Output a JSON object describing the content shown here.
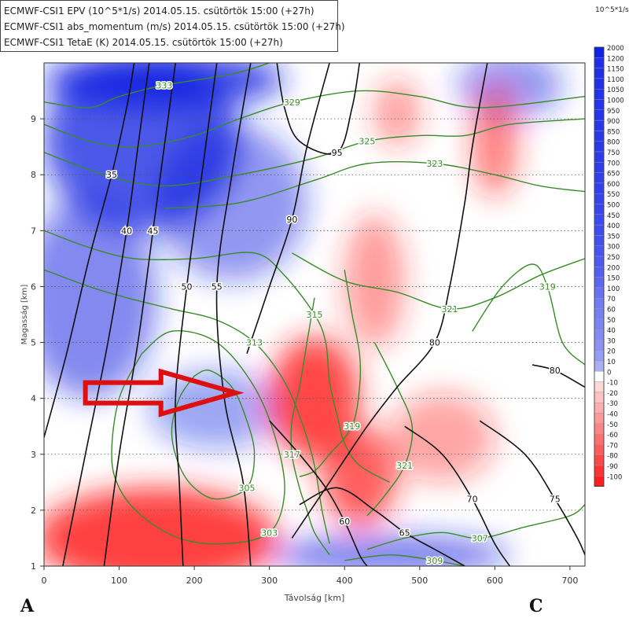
{
  "header": {
    "lines": [
      "ECMWF-CSI1 EPV (10^5*1/s) 2014.05.15. csütörtök 15:00 (+27h)",
      "ECMWF-CSI1 abs_momentum (m/s) 2014.05.15. csütörtök 15:00 (+27h)",
      "ECMWF-CSI1 TetaE (K) 2014.05.15. csütörtök 15:00 (+27h)"
    ]
  },
  "colorbar": {
    "unit": "10^5*1/s",
    "labels": [
      "2000",
      "1200",
      "1150",
      "1100",
      "1050",
      "1000",
      "950",
      "900",
      "850",
      "800",
      "750",
      "700",
      "650",
      "600",
      "550",
      "500",
      "450",
      "400",
      "350",
      "300",
      "250",
      "200",
      "150",
      "100",
      "70",
      "60",
      "50",
      "40",
      "30",
      "20",
      "10",
      "0",
      "-10",
      "-20",
      "-30",
      "-40",
      "-50",
      "-60",
      "-70",
      "-80",
      "-90",
      "-100"
    ]
  },
  "corners": {
    "left": "A",
    "right": "C"
  },
  "chart_data": {
    "type": "cross-section contour",
    "xlabel": "Távolság [km]",
    "ylabel": "Magasság [km]",
    "xlim": [
      0,
      720
    ],
    "ylim": [
      1,
      10
    ],
    "xticks": [
      0,
      100,
      200,
      300,
      400,
      500,
      600,
      700
    ],
    "yticks": [
      1,
      2,
      3,
      4,
      5,
      6,
      7,
      8,
      9
    ],
    "grid": "horizontal dotted",
    "epv_fill": {
      "positive_color": "#1020e0",
      "negative_color": "#ff2020",
      "positive_regions": [
        {
          "x": 130,
          "y": 8.6,
          "rx": 130,
          "ry": 1.6,
          "v": 450
        },
        {
          "x": 60,
          "y": 5.8,
          "rx": 90,
          "ry": 1.8,
          "v": 250
        },
        {
          "x": 250,
          "y": 7.5,
          "rx": 100,
          "ry": 1.4,
          "v": 200
        },
        {
          "x": 160,
          "y": 9.7,
          "rx": 160,
          "ry": 0.5,
          "v": 600
        },
        {
          "x": 620,
          "y": 9.6,
          "rx": 70,
          "ry": 0.6,
          "v": 200
        },
        {
          "x": 460,
          "y": 1.2,
          "rx": 160,
          "ry": 0.35,
          "v": 300
        },
        {
          "x": 230,
          "y": 3.8,
          "rx": 90,
          "ry": 0.7,
          "v": 120
        }
      ],
      "negative_regions": [
        {
          "x": 150,
          "y": 1.5,
          "rx": 160,
          "ry": 0.9,
          "v": -60
        },
        {
          "x": 360,
          "y": 4.0,
          "rx": 60,
          "ry": 1.1,
          "v": -50
        },
        {
          "x": 420,
          "y": 2.6,
          "rx": 50,
          "ry": 0.9,
          "v": -40
        },
        {
          "x": 440,
          "y": 6.1,
          "rx": 40,
          "ry": 1.2,
          "v": -20
        },
        {
          "x": 600,
          "y": 8.6,
          "rx": 30,
          "ry": 1.0,
          "v": -30
        },
        {
          "x": 470,
          "y": 9.1,
          "rx": 30,
          "ry": 0.6,
          "v": -20
        },
        {
          "x": 530,
          "y": 3.3,
          "rx": 70,
          "ry": 0.8,
          "v": -15
        }
      ]
    },
    "abs_momentum_contours": [
      {
        "label": "35",
        "pts": [
          [
            0,
            3.3
          ],
          [
            30,
            4.8
          ],
          [
            60,
            6.5
          ],
          [
            90,
            8.0
          ],
          [
            110,
            9.2
          ],
          [
            120,
            10
          ]
        ]
      },
      {
        "label": "40",
        "pts": [
          [
            25,
            1
          ],
          [
            55,
            3.0
          ],
          [
            85,
            5.0
          ],
          [
            110,
            7.0
          ],
          [
            125,
            8.5
          ],
          [
            140,
            10
          ]
        ]
      },
      {
        "label": "45",
        "pts": [
          [
            80,
            1
          ],
          [
            100,
            3.0
          ],
          [
            125,
            5.0
          ],
          [
            145,
            7.0
          ],
          [
            165,
            9.0
          ],
          [
            175,
            10
          ]
        ]
      },
      {
        "label": "50",
        "pts": [
          [
            185,
            1
          ],
          [
            180,
            2.5
          ],
          [
            175,
            4.0
          ],
          [
            190,
            6.0
          ],
          [
            210,
            8.0
          ],
          [
            230,
            10
          ]
        ]
      },
      {
        "label": "55",
        "pts": [
          [
            275,
            1
          ],
          [
            265,
            2.5
          ],
          [
            240,
            4.0
          ],
          [
            230,
            6.0
          ],
          [
            250,
            8.0
          ],
          [
            275,
            10
          ]
        ]
      },
      {
        "label": "80",
        "pts": [
          [
            330,
            1.5
          ],
          [
            380,
            2.5
          ],
          [
            430,
            3.5
          ],
          [
            470,
            4.2
          ],
          [
            520,
            5.0
          ],
          [
            540,
            6.0
          ],
          [
            560,
            7.5
          ],
          [
            570,
            8.5
          ],
          [
            590,
            10
          ]
        ]
      },
      {
        "label": "90",
        "pts": [
          [
            270,
            4.8
          ],
          [
            300,
            6.0
          ],
          [
            330,
            7.2
          ],
          [
            350,
            8.5
          ],
          [
            380,
            10
          ]
        ]
      },
      {
        "label": "95",
        "pts": [
          [
            310,
            10
          ],
          [
            320,
            9.2
          ],
          [
            340,
            8.6
          ],
          [
            390,
            8.4
          ],
          [
            410,
            9.2
          ],
          [
            420,
            10
          ]
        ]
      },
      {
        "label": "60",
        "pts": [
          [
            300,
            3.6
          ],
          [
            340,
            3.0
          ],
          [
            375,
            2.4
          ],
          [
            400,
            1.8
          ],
          [
            420,
            1.2
          ],
          [
            430,
            1
          ]
        ]
      },
      {
        "label": "65",
        "pts": [
          [
            340,
            2.1
          ],
          [
            390,
            2.4
          ],
          [
            440,
            2.0
          ],
          [
            480,
            1.6
          ],
          [
            520,
            1.3
          ],
          [
            560,
            1
          ]
        ]
      },
      {
        "label": "70",
        "pts": [
          [
            480,
            3.5
          ],
          [
            530,
            3.0
          ],
          [
            570,
            2.2
          ],
          [
            600,
            1.4
          ],
          [
            620,
            1
          ]
        ]
      },
      {
        "label": "75",
        "pts": [
          [
            580,
            3.6
          ],
          [
            640,
            3.0
          ],
          [
            680,
            2.2
          ],
          [
            710,
            1.5
          ],
          [
            720,
            1.2
          ]
        ]
      },
      {
        "label": "80",
        "pts": [
          [
            650,
            4.6
          ],
          [
            680,
            4.5
          ],
          [
            720,
            4.2
          ]
        ]
      }
    ],
    "theta_e_contours": [
      {
        "label": "333",
        "pts": [
          [
            0,
            9.3
          ],
          [
            60,
            9.2
          ],
          [
            100,
            9.4
          ],
          [
            160,
            9.6
          ],
          [
            250,
            9.8
          ],
          [
            300,
            10
          ]
        ]
      },
      {
        "label": "329",
        "pts": [
          [
            0,
            8.9
          ],
          [
            60,
            8.6
          ],
          [
            120,
            8.5
          ],
          [
            200,
            8.7
          ],
          [
            260,
            9.0
          ],
          [
            330,
            9.3
          ],
          [
            420,
            9.5
          ],
          [
            500,
            9.4
          ],
          [
            580,
            9.2
          ],
          [
            720,
            9.4
          ]
        ]
      },
      {
        "label": "325",
        "pts": [
          [
            0,
            8.4
          ],
          [
            80,
            8.0
          ],
          [
            160,
            7.8
          ],
          [
            260,
            8.0
          ],
          [
            360,
            8.3
          ],
          [
            430,
            8.6
          ],
          [
            500,
            8.7
          ],
          [
            560,
            8.7
          ],
          [
            620,
            8.9
          ],
          [
            720,
            9.0
          ]
        ]
      },
      {
        "label": "323",
        "pts": [
          [
            160,
            7.4
          ],
          [
            260,
            7.5
          ],
          [
            360,
            7.9
          ],
          [
            430,
            8.2
          ],
          [
            520,
            8.2
          ],
          [
            600,
            8.0
          ],
          [
            660,
            7.8
          ],
          [
            720,
            7.7
          ]
        ]
      },
      {
        "label": "315",
        "pts": [
          [
            0,
            7.0
          ],
          [
            60,
            6.7
          ],
          [
            120,
            6.5
          ],
          [
            200,
            6.5
          ],
          [
            280,
            6.6
          ],
          [
            320,
            6.2
          ],
          [
            360,
            5.5
          ],
          [
            375,
            5.0
          ],
          [
            380,
            4.3
          ],
          [
            390,
            3.7
          ],
          [
            400,
            3.2
          ],
          [
            420,
            2.8
          ],
          [
            460,
            2.5
          ]
        ]
      },
      {
        "label": "313",
        "pts": [
          [
            0,
            6.3
          ],
          [
            60,
            6.0
          ],
          [
            110,
            5.8
          ],
          [
            170,
            5.6
          ],
          [
            230,
            5.4
          ],
          [
            280,
            5.0
          ],
          [
            320,
            4.3
          ],
          [
            345,
            3.5
          ],
          [
            360,
            2.8
          ],
          [
            370,
            2.0
          ],
          [
            380,
            1.4
          ]
        ]
      },
      {
        "label": "321",
        "pts": [
          [
            330,
            6.6
          ],
          [
            400,
            6.1
          ],
          [
            470,
            5.9
          ],
          [
            540,
            5.6
          ],
          [
            600,
            5.8
          ],
          [
            660,
            6.2
          ],
          [
            720,
            6.5
          ]
        ]
      },
      {
        "label": "319",
        "pts": [
          [
            570,
            5.2
          ],
          [
            610,
            6.0
          ],
          [
            650,
            6.4
          ],
          [
            670,
            6.0
          ],
          [
            690,
            5.0
          ],
          [
            720,
            4.6
          ]
        ]
      },
      {
        "label": "319",
        "pts": [
          [
            400,
            6.3
          ],
          [
            410,
            5.5
          ],
          [
            420,
            4.8
          ],
          [
            420,
            4.2
          ],
          [
            410,
            3.5
          ],
          [
            380,
            3.0
          ],
          [
            360,
            2.7
          ],
          [
            340,
            2.6
          ]
        ]
      },
      {
        "label": "321",
        "pts": [
          [
            440,
            5.0
          ],
          [
            470,
            4.2
          ],
          [
            490,
            3.5
          ],
          [
            480,
            2.8
          ],
          [
            450,
            2.2
          ],
          [
            430,
            1.9
          ]
        ]
      },
      {
        "label": "317",
        "pts": [
          [
            360,
            5.8
          ],
          [
            350,
            5.0
          ],
          [
            340,
            4.2
          ],
          [
            330,
            3.6
          ],
          [
            330,
            3.0
          ],
          [
            340,
            2.4
          ],
          [
            350,
            2.0
          ],
          [
            360,
            1.6
          ],
          [
            380,
            1.2
          ]
        ]
      },
      {
        "label": "305",
        "pts": [
          [
            200,
            4.4
          ],
          [
            180,
            4.0
          ],
          [
            170,
            3.4
          ],
          [
            180,
            2.8
          ],
          [
            200,
            2.4
          ],
          [
            230,
            2.2
          ],
          [
            270,
            2.4
          ],
          [
            280,
            3.0
          ],
          [
            270,
            3.6
          ],
          [
            250,
            4.2
          ],
          [
            220,
            4.5
          ],
          [
            200,
            4.4
          ]
        ]
      },
      {
        "label": "303",
        "pts": [
          [
            130,
            4.8
          ],
          [
            100,
            4.0
          ],
          [
            90,
            3.0
          ],
          [
            100,
            2.4
          ],
          [
            130,
            1.9
          ],
          [
            180,
            1.5
          ],
          [
            240,
            1.4
          ],
          [
            300,
            1.6
          ],
          [
            320,
            2.3
          ],
          [
            310,
            3.2
          ],
          [
            280,
            4.2
          ],
          [
            230,
            5.0
          ],
          [
            170,
            5.2
          ],
          [
            130,
            4.8
          ]
        ]
      },
      {
        "label": "307",
        "pts": [
          [
            430,
            1.3
          ],
          [
            480,
            1.5
          ],
          [
            530,
            1.6
          ],
          [
            580,
            1.5
          ],
          [
            640,
            1.7
          ],
          [
            700,
            1.9
          ],
          [
            720,
            2.1
          ]
        ]
      },
      {
        "label": "309",
        "pts": [
          [
            400,
            1.1
          ],
          [
            460,
            1.2
          ],
          [
            520,
            1.1
          ],
          [
            560,
            1.0
          ]
        ]
      }
    ],
    "arrow": {
      "color": "#dd1010",
      "x_from": 55,
      "x_to": 255,
      "y": 4.1
    }
  }
}
